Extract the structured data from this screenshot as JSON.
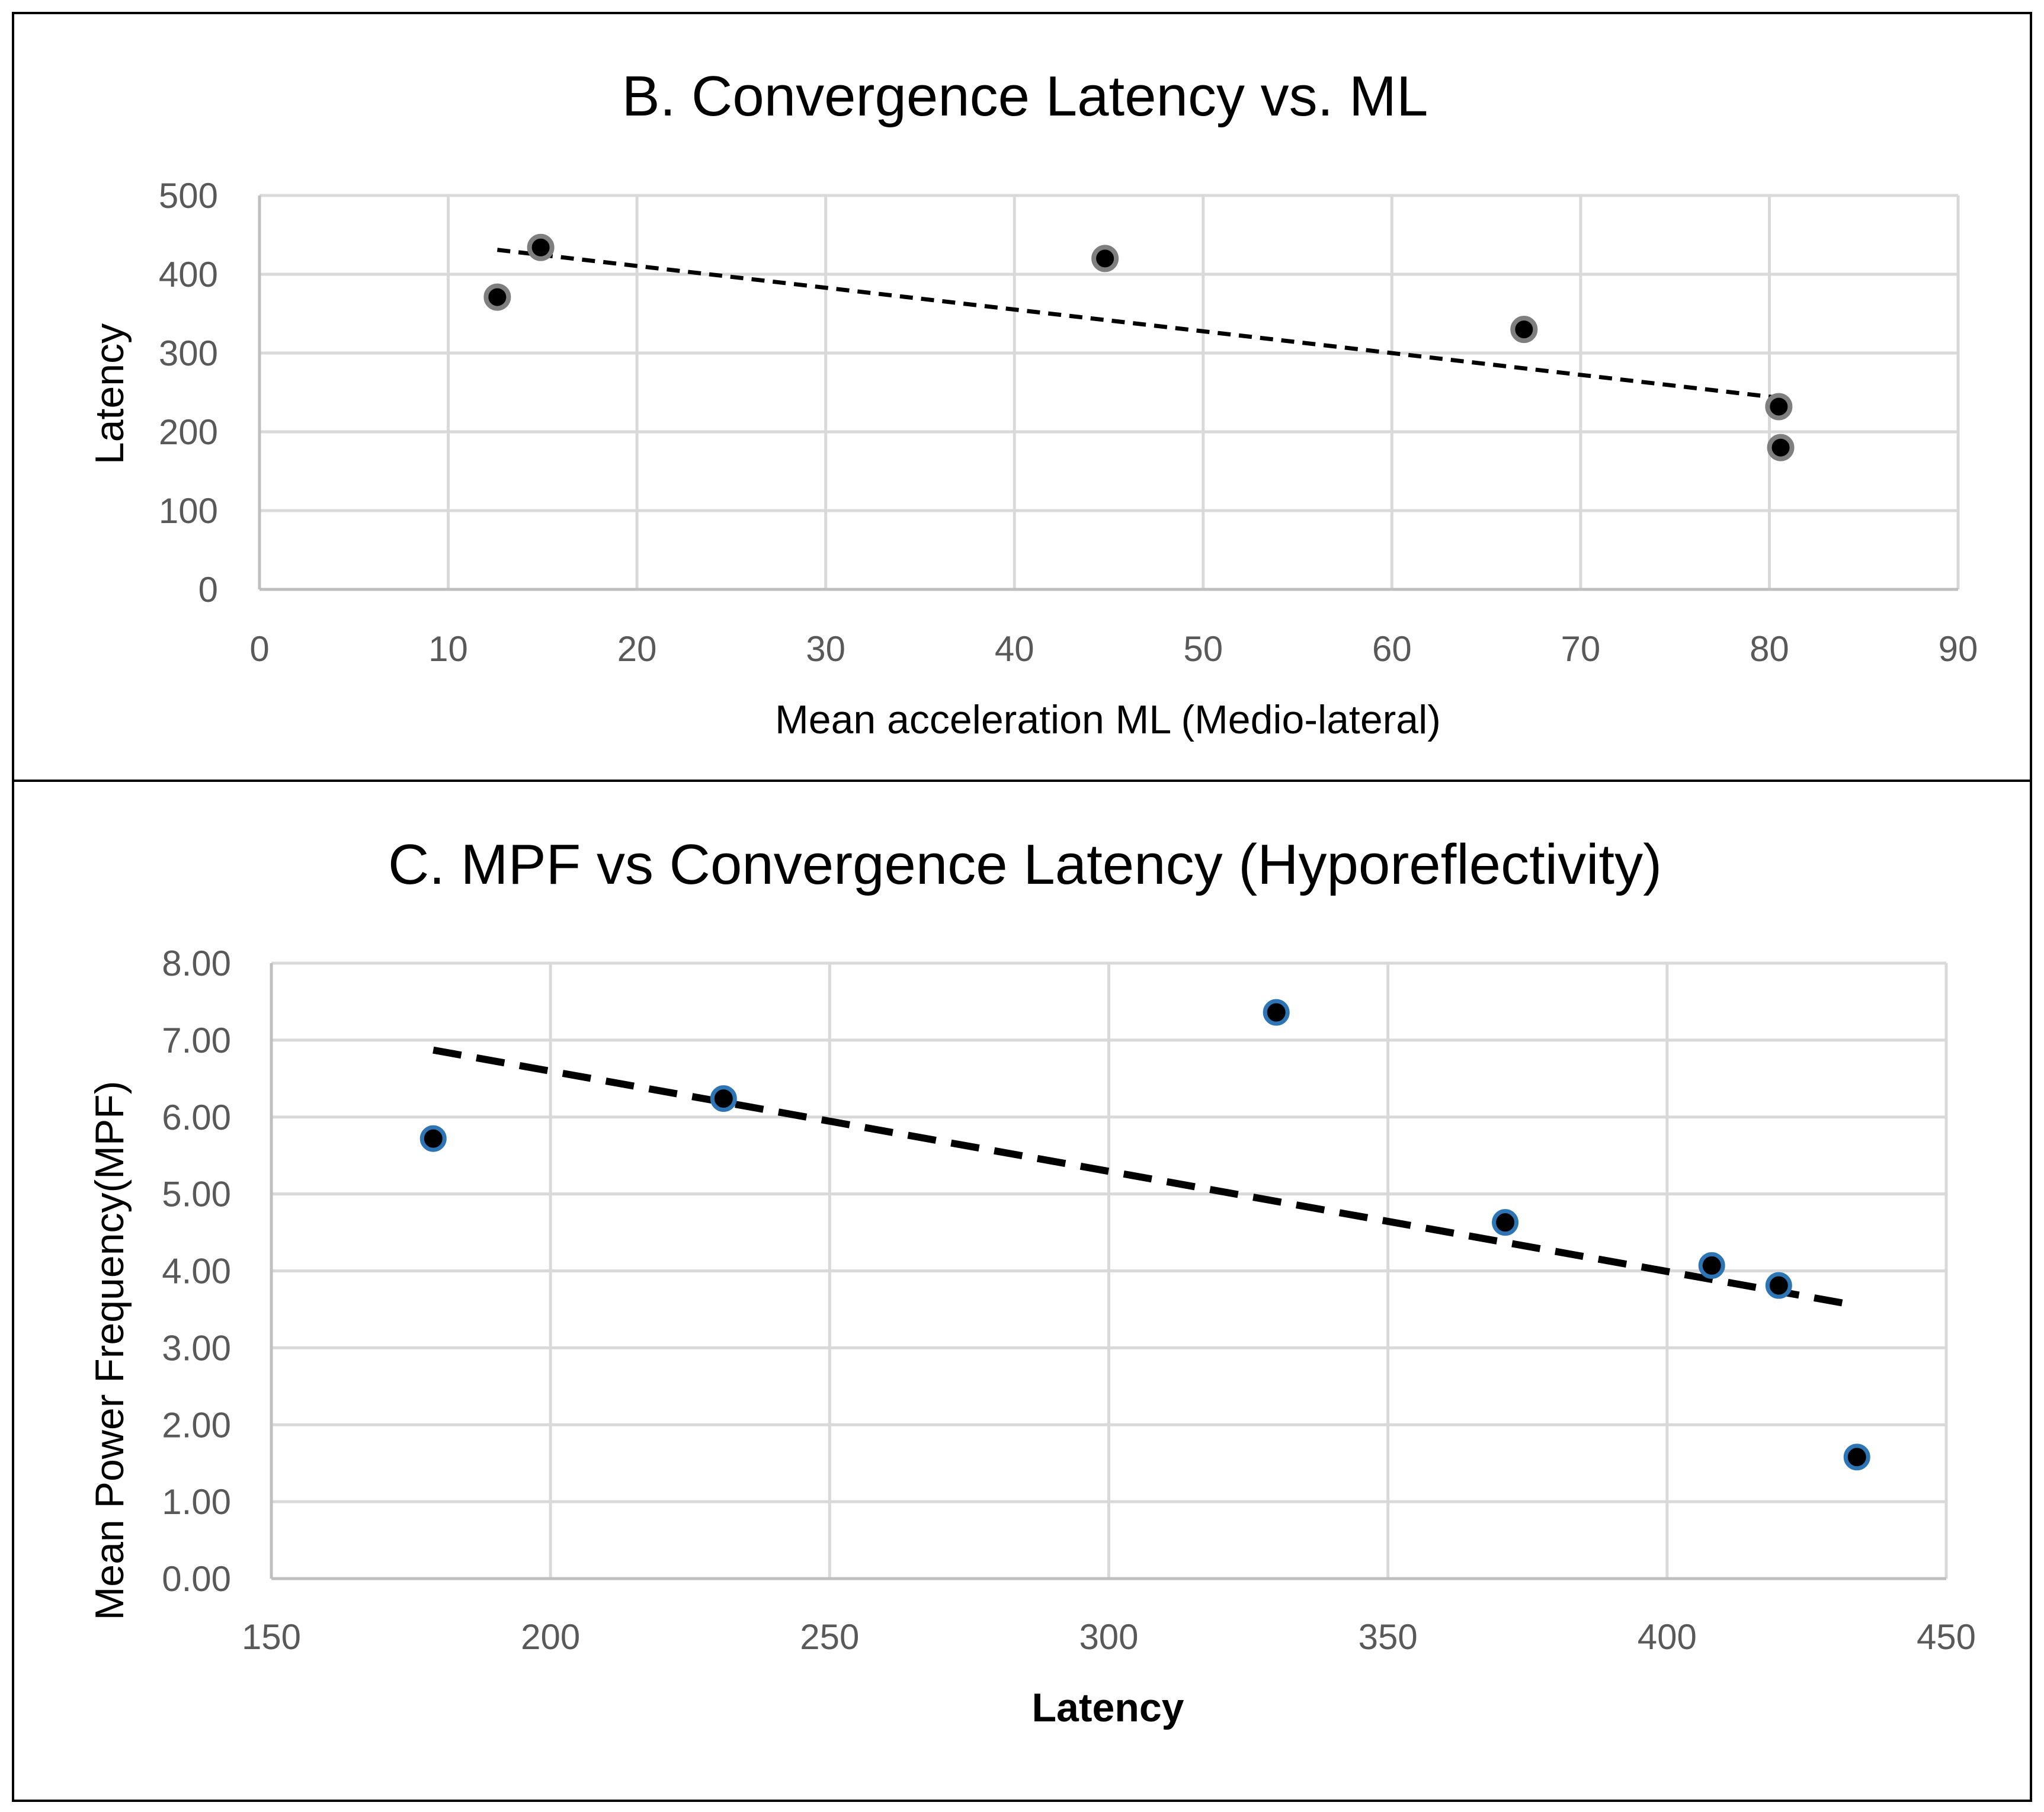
{
  "chart_data": [
    {
      "type": "scatter",
      "title": "B. Convergence Latency vs. ML",
      "xlabel": "Mean acceleration ML (Medio-lateral)",
      "ylabel": "Latency",
      "xlim": [
        0,
        90
      ],
      "ylim": [
        0,
        500
      ],
      "x_ticks": [
        "0",
        "10",
        "20",
        "30",
        "40",
        "50",
        "60",
        "70",
        "80",
        "90"
      ],
      "y_ticks": [
        "0",
        "100",
        "200",
        "300",
        "400",
        "500"
      ],
      "grid": true,
      "series": [
        {
          "name": "Latency",
          "marker_fill": "#000000",
          "marker_edge": "#7f7f7f",
          "points": [
            {
              "x": 12.6,
              "y": 371
            },
            {
              "x": 14.9,
              "y": 434
            },
            {
              "x": 44.8,
              "y": 420
            },
            {
              "x": 67.0,
              "y": 330
            },
            {
              "x": 80.5,
              "y": 232
            },
            {
              "x": 80.6,
              "y": 180
            }
          ]
        }
      ],
      "trendline": {
        "type": "linear",
        "style": "dashed",
        "x0": 12.6,
        "y0": 431,
        "x1": 80.6,
        "y1": 243
      }
    },
    {
      "type": "scatter",
      "title": "C. MPF vs Convergence Latency (Hyporeflectivity)",
      "xlabel": "Latency",
      "ylabel": "Mean Power Frequency(MPF)",
      "xlim": [
        150,
        450
      ],
      "ylim": [
        0,
        8
      ],
      "x_ticks": [
        "150",
        "200",
        "250",
        "300",
        "350",
        "400",
        "450"
      ],
      "y_ticks": [
        "0.00",
        "1.00",
        "2.00",
        "3.00",
        "4.00",
        "5.00",
        "6.00",
        "7.00",
        "8.00"
      ],
      "grid": true,
      "series": [
        {
          "name": "MPF",
          "marker_fill": "#000000",
          "marker_edge": "#2e75b6",
          "points": [
            {
              "x": 179,
              "y": 5.72
            },
            {
              "x": 231,
              "y": 6.24
            },
            {
              "x": 330,
              "y": 7.36
            },
            {
              "x": 371,
              "y": 4.63
            },
            {
              "x": 408,
              "y": 4.07
            },
            {
              "x": 420,
              "y": 3.81
            },
            {
              "x": 434,
              "y": 1.58
            }
          ]
        }
      ],
      "trendline": {
        "type": "linear",
        "style": "dashed",
        "x0": 179,
        "y0": 6.87,
        "x1": 434,
        "y1": 3.55
      }
    }
  ]
}
